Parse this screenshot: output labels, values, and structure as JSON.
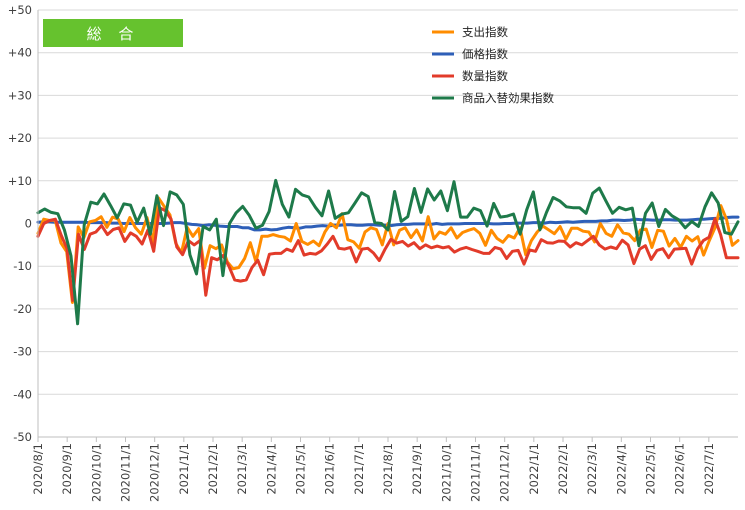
{
  "chart_data": {
    "type": "line",
    "badge": "総 合",
    "ylim": [
      -50,
      50
    ],
    "y_ticks": [
      50,
      40,
      30,
      20,
      10,
      0,
      -10,
      -20,
      -30,
      -40,
      -50
    ],
    "y_tick_labels": [
      "+50",
      "+40",
      "+30",
      "+20",
      "+10",
      "0",
      "-10",
      "-20",
      "-30",
      "-40",
      "-50"
    ],
    "x_tick_labels": [
      "2020/8/1",
      "2020/9/1",
      "2020/10/1",
      "2020/11/1",
      "2020/12/1",
      "2021/1/1",
      "2021/2/1",
      "2021/3/1",
      "2021/4/1",
      "2021/5/1",
      "2021/6/1",
      "2021/7/1",
      "2021/8/1",
      "2021/9/1",
      "2021/10/1",
      "2021/11/1",
      "2021/12/1",
      "2022/1/1",
      "2022/2/1",
      "2022/3/1",
      "2022/4/1",
      "2022/5/1",
      "2022/6/1",
      "2022/7/1"
    ],
    "colors": {
      "spending": "#ff8c00",
      "price": "#2e5fb8",
      "quantity": "#e23b2a",
      "mix": "#1e7a4a",
      "badge": "#66c22e"
    },
    "series": [
      {
        "name": "支出指数",
        "key": "spending",
        "values": [
          -2.3,
          1.0,
          0.7,
          0.8,
          -4.6,
          -6.6,
          -18.5,
          -0.8,
          -3.3,
          0.4,
          0.7,
          1.6,
          -0.9,
          1.5,
          1.0,
          -1.9,
          1.4,
          -1.0,
          -2.5,
          1.4,
          -4.3,
          6.0,
          4.0,
          2.0,
          -4.6,
          -6.9,
          -0.9,
          -3.0,
          -1.2,
          -10.5,
          -5.2,
          -5.9,
          -5.0,
          -9.0,
          -10.6,
          -10.3,
          -8.2,
          -4.5,
          -9.0,
          -3.0,
          -3.0,
          -2.6,
          -3.0,
          -3.2,
          -4.1,
          0.0,
          -4.2,
          -4.9,
          -4.1,
          -5.2,
          -2.0,
          0.0,
          -1.0,
          2.3,
          -3.8,
          -4.3,
          -5.8,
          -2.0,
          -1.0,
          -1.4,
          -5.0,
          0.0,
          -5.0,
          -1.6,
          -1.0,
          -3.3,
          -1.5,
          -4.1,
          1.6,
          -3.6,
          -2.0,
          -2.5,
          -1.0,
          -3.4,
          -2.1,
          -1.6,
          -1.2,
          -2.3,
          -5.1,
          -1.6,
          -3.5,
          -4.4,
          -2.8,
          -3.4,
          -1.0,
          -7.3,
          -4.0,
          -2.0,
          -0.6,
          -1.5,
          -2.4,
          -0.7,
          -3.7,
          -1.1,
          -1.1,
          -1.8,
          -2.0,
          -4.3,
          0.0,
          -2.3,
          -3.0,
          -0.3,
          -2.2,
          -2.5,
          -4.0,
          -1.5,
          -1.3,
          -5.6,
          -1.6,
          -1.8,
          -5.3,
          -3.5,
          -5.6,
          -3.0,
          -4.1,
          -3.1,
          -7.4,
          -4.0,
          -1.0,
          4.2,
          1.0,
          -5.1,
          -4.0
        ]
      },
      {
        "name": "価格指数",
        "key": "price",
        "values": [
          0.3,
          0.4,
          0.4,
          0.3,
          0.3,
          0.3,
          0.3,
          0.3,
          0.3,
          0.2,
          0.2,
          0.2,
          0.2,
          0.1,
          0.1,
          0.0,
          0.0,
          0.0,
          0.0,
          0.0,
          0.0,
          0.0,
          0.0,
          0.1,
          0.2,
          0.2,
          0.0,
          -0.2,
          -0.3,
          -0.5,
          -0.3,
          -0.4,
          -0.6,
          -0.7,
          -0.7,
          -0.7,
          -1.0,
          -1.0,
          -1.5,
          -1.5,
          -1.3,
          -1.5,
          -1.4,
          -1.1,
          -0.9,
          -1.0,
          -1.1,
          -0.8,
          -0.8,
          -0.6,
          -0.5,
          -0.6,
          -0.4,
          -0.4,
          -0.3,
          -0.3,
          -0.4,
          -0.4,
          -0.3,
          -0.3,
          -0.4,
          -0.4,
          -0.5,
          -0.3,
          -0.2,
          -0.2,
          -0.1,
          -0.1,
          -0.1,
          -0.2,
          0.0,
          -0.2,
          -0.1,
          -0.1,
          -0.1,
          0.0,
          0.0,
          0.0,
          0.0,
          0.0,
          -0.1,
          -0.1,
          0.0,
          0.0,
          0.1,
          0.1,
          0.1,
          0.2,
          0.2,
          0.1,
          0.3,
          0.2,
          0.3,
          0.4,
          0.3,
          0.4,
          0.5,
          0.5,
          0.5,
          0.6,
          0.6,
          0.8,
          0.8,
          0.7,
          0.8,
          1.0,
          0.9,
          0.9,
          0.8,
          0.8,
          0.9,
          0.9,
          0.8,
          0.8,
          0.8,
          0.9,
          1.0,
          1.0,
          1.1,
          1.2,
          1.2,
          1.4,
          1.5,
          1.5
        ]
      },
      {
        "name": "数量指数",
        "key": "quantity",
        "values": [
          -3.0,
          0.0,
          0.7,
          1.0,
          -2.7,
          -5.8,
          -18.0,
          -2.5,
          -6.1,
          -2.5,
          -2.0,
          -0.5,
          -2.6,
          -1.4,
          -1.0,
          -4.2,
          -2.2,
          -3.0,
          -4.8,
          -1.5,
          -6.5,
          3.7,
          3.0,
          1.0,
          -5.5,
          -7.3,
          -4.0,
          -5.0,
          -4.0,
          -16.8,
          -8.0,
          -8.5,
          -7.5,
          -10.0,
          -13.2,
          -13.5,
          -13.2,
          -10.3,
          -8.6,
          -12.0,
          -7.2,
          -7.0,
          -7.0,
          -6.0,
          -6.5,
          -4.0,
          -7.4,
          -7.0,
          -7.2,
          -6.4,
          -4.8,
          -3.0,
          -5.8,
          -6.0,
          -5.6,
          -9.0,
          -6.0,
          -5.8,
          -6.9,
          -8.7,
          -6.0,
          -3.7,
          -4.6,
          -4.2,
          -5.3,
          -4.5,
          -5.9,
          -5.0,
          -5.7,
          -5.3,
          -5.7,
          -5.4,
          -6.7,
          -6.0,
          -5.6,
          -6.1,
          -6.5,
          -7.0,
          -7.0,
          -5.6,
          -6.0,
          -8.2,
          -6.5,
          -6.3,
          -9.5,
          -6.2,
          -6.5,
          -3.8,
          -4.5,
          -4.6,
          -4.1,
          -4.2,
          -5.5,
          -4.5,
          -5.0,
          -4.0,
          -3.0,
          -5.0,
          -6.0,
          -5.5,
          -5.9,
          -3.9,
          -5.0,
          -9.4,
          -6.0,
          -5.2,
          -8.4,
          -6.3,
          -5.9,
          -8.0,
          -6.0,
          -5.9,
          -5.8,
          -9.5,
          -6.0,
          -4.0,
          -3.2,
          1.1,
          -2.6,
          -8.0,
          -8.0,
          -8.0
        ]
      },
      {
        "name": "商品入替効果指数",
        "key": "mix",
        "values": [
          2.5,
          3.4,
          2.6,
          2.3,
          -1.5,
          -7.6,
          -23.5,
          -0.3,
          5.0,
          4.6,
          6.9,
          4.2,
          1.3,
          4.6,
          4.3,
          0.3,
          3.6,
          -2.5,
          6.5,
          -0.5,
          7.4,
          6.7,
          4.5,
          -7.3,
          -11.8,
          -0.7,
          -1.5,
          1.0,
          -12.2,
          0.0,
          2.5,
          4.0,
          1.9,
          -1.1,
          -0.4,
          2.8,
          10.1,
          4.5,
          1.5,
          8.0,
          6.7,
          6.2,
          3.8,
          1.8,
          7.6,
          1.2,
          2.2,
          2.5,
          4.8,
          7.2,
          6.3,
          0.2,
          0.0,
          -1.5,
          7.5,
          0.5,
          1.6,
          8.2,
          2.6,
          8.1,
          5.5,
          7.6,
          3.0,
          9.8,
          1.5,
          1.5,
          3.6,
          3.0,
          -0.6,
          4.7,
          1.5,
          1.7,
          2.2,
          -2.5,
          3.2,
          7.4,
          -1.5,
          2.6,
          6.1,
          5.3,
          3.9,
          3.7,
          3.7,
          2.4,
          7.1,
          8.3,
          5.3,
          2.4,
          3.8,
          3.2,
          3.6,
          -5.2,
          2.4,
          4.8,
          -0.7,
          3.3,
          1.8,
          0.9,
          -1.0,
          0.5,
          -0.7,
          3.9,
          7.2,
          4.8,
          -2.1,
          -2.5,
          0.4
        ]
      }
    ]
  }
}
